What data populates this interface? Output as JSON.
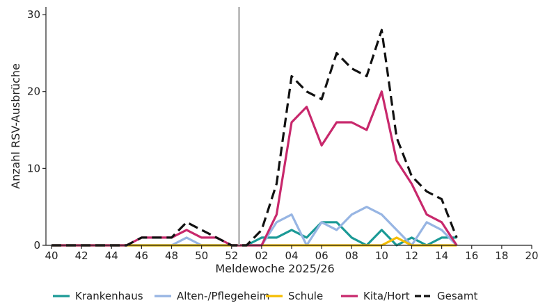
{
  "chart_data": {
    "type": "line",
    "title": "",
    "xlabel": "Meldewoche 2025/26",
    "ylabel": "Anzahl RSV-Ausbrüche",
    "ylim": [
      0,
      31
    ],
    "yticks": [
      0,
      10,
      20,
      30
    ],
    "x": [
      "40",
      "41",
      "42",
      "43",
      "44",
      "45",
      "46",
      "47",
      "48",
      "49",
      "50",
      "51",
      "52",
      "01",
      "02",
      "03",
      "04",
      "05",
      "06",
      "07",
      "08",
      "09",
      "10",
      "11",
      "12",
      "13",
      "14",
      "15",
      "16",
      "17",
      "18",
      "19",
      "20"
    ],
    "xtick_labels": [
      "40",
      "42",
      "44",
      "46",
      "48",
      "50",
      "52",
      "02",
      "04",
      "06",
      "08",
      "10",
      "12",
      "14",
      "16",
      "18",
      "20"
    ],
    "year_boundary_after": "52",
    "series": [
      {
        "name": "Krankenhaus",
        "color": "#1b9a96",
        "dash": "solid",
        "values": [
          0,
          0,
          0,
          0,
          0,
          0,
          0,
          0,
          0,
          0,
          0,
          0,
          0,
          0,
          1,
          1,
          2,
          1,
          3,
          3,
          1,
          0,
          2,
          0,
          1,
          0,
          1,
          1,
          null,
          null,
          null,
          null,
          null
        ]
      },
      {
        "name": "Alten-/Pflegeheim",
        "color": "#97b5e3",
        "dash": "solid",
        "values": [
          0,
          0,
          0,
          0,
          0,
          0,
          0,
          0,
          0,
          1,
          0,
          0,
          0,
          0,
          0,
          3,
          4,
          0,
          3,
          2,
          4,
          5,
          4,
          2,
          0,
          3,
          2,
          0,
          null,
          null,
          null,
          null,
          null
        ]
      },
      {
        "name": "Schule",
        "color": "#f5bd00",
        "dash": "solid",
        "values": [
          0,
          0,
          0,
          0,
          0,
          0,
          0,
          0,
          0,
          0,
          0,
          0,
          0,
          0,
          0,
          0,
          0,
          0,
          0,
          0,
          0,
          0,
          0,
          1,
          0,
          0,
          0,
          0,
          null,
          null,
          null,
          null,
          null
        ]
      },
      {
        "name": "Kita/Hort",
        "color": "#c8286c",
        "dash": "solid",
        "values": [
          0,
          0,
          0,
          0,
          0,
          0,
          1,
          1,
          1,
          2,
          1,
          1,
          0,
          0,
          0,
          4,
          16,
          18,
          13,
          16,
          16,
          15,
          20,
          11,
          8,
          4,
          3,
          0,
          null,
          null,
          null,
          null,
          null
        ]
      },
      {
        "name": "Gesamt",
        "color": "#111111",
        "dash": "dashed",
        "values": [
          0,
          0,
          0,
          0,
          0,
          0,
          1,
          1,
          1,
          3,
          2,
          1,
          0,
          0,
          2,
          8,
          22,
          20,
          19,
          25,
          23,
          22,
          28,
          14,
          9,
          7,
          6,
          1,
          null,
          null,
          null,
          null,
          null
        ]
      }
    ],
    "legend": "bottom",
    "grid": false
  }
}
